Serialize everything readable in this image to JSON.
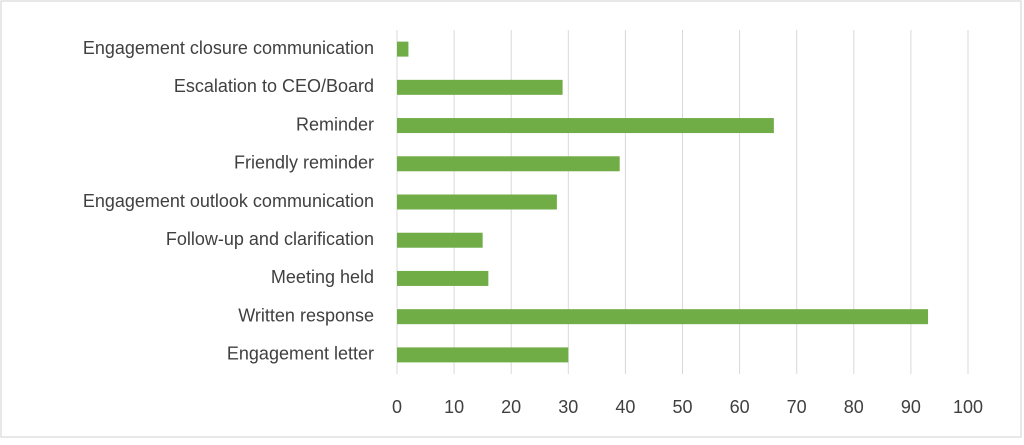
{
  "chart_data": {
    "type": "barh",
    "categories": [
      "Engagement closure communication",
      "Escalation to CEO/Board",
      "Reminder",
      "Friendly reminder",
      "Engagement outlook communication",
      "Follow-up and clarification",
      "Meeting held",
      "Written response",
      "Engagement letter"
    ],
    "values": [
      2,
      29,
      66,
      39,
      28,
      15,
      16,
      93,
      30
    ],
    "color": "#70ad47",
    "xlim": [
      0,
      100
    ],
    "xticks": [
      0,
      10,
      20,
      30,
      40,
      50,
      60,
      70,
      80,
      90,
      100
    ],
    "grid": true
  }
}
